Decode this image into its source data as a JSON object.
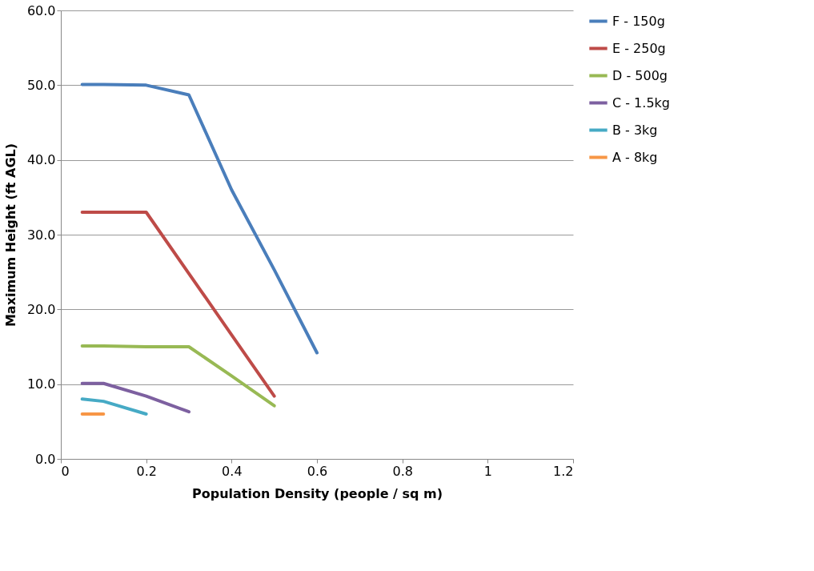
{
  "chart_data": {
    "type": "line",
    "xlabel": "Population Density (people / sq m)",
    "ylabel": "Maximum Height (ft AGL)",
    "xlim": [
      0,
      1.2
    ],
    "xticks": [
      0,
      0.2,
      0.4,
      0.6,
      0.8,
      1,
      1.2
    ],
    "ylim": [
      0,
      60
    ],
    "yticks": [
      {
        "value": 0,
        "label": "0.0"
      },
      {
        "value": 10,
        "label": "10.0"
      },
      {
        "value": 20,
        "label": "20.0"
      },
      {
        "value": 30,
        "label": "30.0"
      },
      {
        "value": 40,
        "label": "40.0"
      },
      {
        "value": 50,
        "label": "50.0"
      },
      {
        "value": 60,
        "label": "60.0"
      }
    ],
    "grid": "y",
    "legend": "right",
    "marker": "none",
    "line_style": "solid",
    "series": [
      {
        "name": "F - 150g",
        "color": "#4a7ebb",
        "x": [
          0.05,
          0.1,
          0.2,
          0.3,
          0.4,
          0.5,
          0.6
        ],
        "values": [
          50.1,
          50.1,
          50.0,
          48.7,
          36.0,
          25.3,
          14.2
        ]
      },
      {
        "name": "E - 250g",
        "color": "#be4b48",
        "x": [
          0.05,
          0.1,
          0.2,
          0.3,
          0.4,
          0.5
        ],
        "values": [
          33.0,
          33.0,
          33.0,
          24.8,
          16.6,
          8.4
        ]
      },
      {
        "name": "D - 500g",
        "color": "#98b954",
        "x": [
          0.05,
          0.1,
          0.2,
          0.3,
          0.4,
          0.5
        ],
        "values": [
          15.1,
          15.1,
          15.0,
          15.0,
          11.1,
          7.1
        ]
      },
      {
        "name": "C - 1.5kg",
        "color": "#7d60a0",
        "x": [
          0.05,
          0.1,
          0.2,
          0.3
        ],
        "values": [
          10.1,
          10.1,
          8.4,
          6.3
        ]
      },
      {
        "name": "B - 3kg",
        "color": "#46aac5",
        "x": [
          0.05,
          0.1,
          0.2
        ],
        "values": [
          8.0,
          7.7,
          6.0
        ]
      },
      {
        "name": "A - 8kg",
        "color": "#f79646",
        "x": [
          0.05,
          0.1
        ],
        "values": [
          6.0,
          6.0
        ]
      }
    ]
  }
}
